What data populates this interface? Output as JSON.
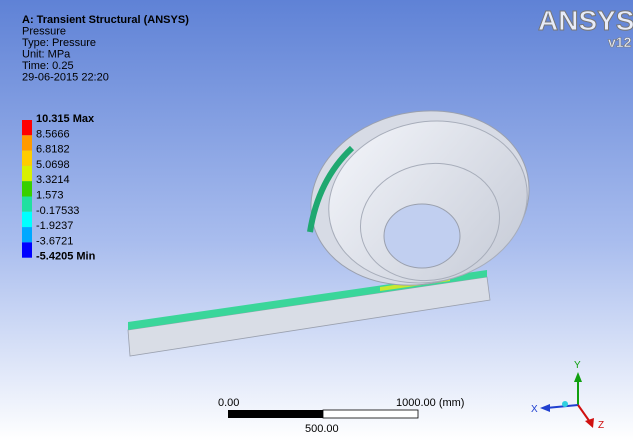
{
  "header": {
    "lines": [
      "A: Transient Structural (ANSYS)",
      "Pressure",
      "Type: Pressure",
      "Unit: MPa",
      "Time: 0.25",
      "29-06-2015 22:20"
    ]
  },
  "legend": {
    "labels": [
      "10.315 Max",
      "8.5666",
      "6.8182",
      "5.0698",
      "3.3214",
      "1.573",
      "-0.17533",
      "-1.9237",
      "-3.6721",
      "-5.4205 Min"
    ],
    "colors": [
      "#ff0000",
      "#ff9a00",
      "#ffcc00",
      "#d8f000",
      "#38d000",
      "#20e0a0",
      "#00ffff",
      "#00a8ff",
      "#0000ff"
    ]
  },
  "logo": {
    "brand": "ANSYS",
    "version": "v12"
  },
  "scale": {
    "start": "0.00",
    "end": "1000.00 (mm)",
    "mid": "500.00"
  },
  "triad": {
    "x": "X",
    "y": "Y",
    "z": "Z"
  }
}
